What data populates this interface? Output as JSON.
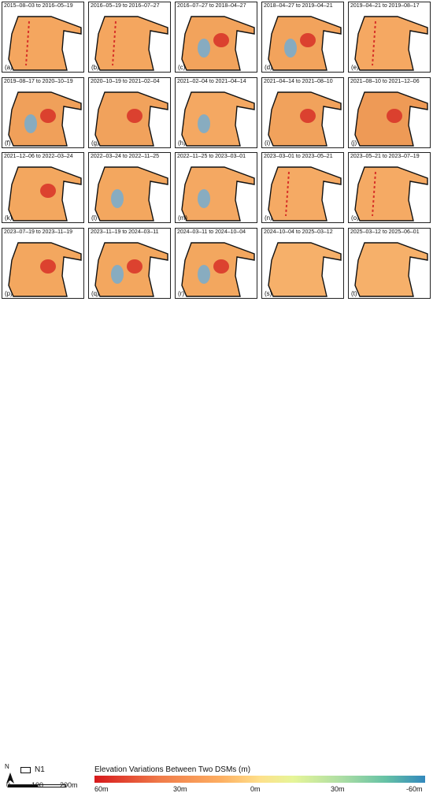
{
  "panels": [
    {
      "title": "2015–08–03 to 2016–05–19",
      "label": "(a)",
      "tone": "#f4a65f",
      "blobs": [
        {
          "type": "stripe"
        }
      ]
    },
    {
      "title": "2016–05–19 to 2016–07–27",
      "label": "(b)",
      "tone": "#f4a65f",
      "blobs": [
        {
          "type": "stripe"
        }
      ]
    },
    {
      "title": "2016–07–27 to 2018–04–27",
      "label": "(c)",
      "tone": "#f2a35c",
      "blobs": [
        {
          "type": "blue"
        },
        {
          "type": "red"
        }
      ]
    },
    {
      "title": "2018–04–27 to 2019–04–21",
      "label": "(d)",
      "tone": "#f2a35c",
      "blobs": [
        {
          "type": "blue"
        },
        {
          "type": "red"
        }
      ]
    },
    {
      "title": "2019–04–21 to 2019–08–17",
      "label": "(e)",
      "tone": "#f5a862",
      "blobs": [
        {
          "type": "stripe"
        }
      ]
    },
    {
      "title": "2019–08–17 to 2020–10–19",
      "label": "(f)",
      "tone": "#f0a05a",
      "blobs": [
        {
          "type": "blue"
        },
        {
          "type": "red"
        }
      ]
    },
    {
      "title": "2020–10–19 to 2021–02–04",
      "label": "(g)",
      "tone": "#f1a25c",
      "blobs": [
        {
          "type": "red"
        }
      ]
    },
    {
      "title": "2021–02–04 to 2021–04–14",
      "label": "(h)",
      "tone": "#f4a862",
      "blobs": [
        {
          "type": "blue"
        }
      ]
    },
    {
      "title": "2021–04–14 to 2021–08–10",
      "label": "(i)",
      "tone": "#f1a25c",
      "blobs": [
        {
          "type": "red"
        }
      ]
    },
    {
      "title": "2021–08–10 to 2021–12–06",
      "label": "(j)",
      "tone": "#ee9a56",
      "blobs": [
        {
          "type": "red"
        }
      ]
    },
    {
      "title": "2021–12–06 to 2022–03–24",
      "label": "(k)",
      "tone": "#f3a75f",
      "blobs": [
        {
          "type": "red"
        }
      ]
    },
    {
      "title": "2022–03–24 to 2022–11–25",
      "label": "(l)",
      "tone": "#f3a75f",
      "blobs": [
        {
          "type": "blue"
        }
      ]
    },
    {
      "title": "2022–11–25 to 2023–03–01",
      "label": "(m)",
      "tone": "#f4a862",
      "blobs": [
        {
          "type": "blue"
        }
      ]
    },
    {
      "title": "2023–03–01 to 2023–05–21",
      "label": "(n)",
      "tone": "#f5aa64",
      "blobs": [
        {
          "type": "stripe"
        }
      ]
    },
    {
      "title": "2023–05–21 to 2023–07–19",
      "label": "(o)",
      "tone": "#f5aa64",
      "blobs": [
        {
          "type": "stripe"
        }
      ]
    },
    {
      "title": "2023–07–19 to 2023–11–19",
      "label": "(p)",
      "tone": "#f3a75f",
      "blobs": [
        {
          "type": "red"
        }
      ]
    },
    {
      "title": "2023–11–19 to 2024–03–11",
      "label": "(q)",
      "tone": "#f3a75f",
      "blobs": [
        {
          "type": "blue"
        },
        {
          "type": "red"
        }
      ]
    },
    {
      "title": "2024–03–11 to 2024–10–04",
      "label": "(r)",
      "tone": "#f3a75f",
      "blobs": [
        {
          "type": "blue"
        },
        {
          "type": "red"
        }
      ]
    },
    {
      "title": "2024–10–04 to 2025–03–12",
      "label": "(s)",
      "tone": "#f6b06a",
      "blobs": []
    },
    {
      "title": "2025–03–12 to 2025–06–01",
      "label": "(t)",
      "tone": "#f6b06a",
      "blobs": []
    }
  ],
  "legend": {
    "north": "N",
    "boundary_label": "N1",
    "scale": [
      "0",
      "100",
      "200m"
    ],
    "colorbar_title": "Elevation Variations Between Two DSMs (m)",
    "ticks": [
      "60m",
      "30m",
      "0m",
      "30m",
      "-60m"
    ],
    "colors": [
      "#d7191c",
      "#fdae61",
      "#fee08b",
      "#abdda4",
      "#3288bd"
    ]
  }
}
